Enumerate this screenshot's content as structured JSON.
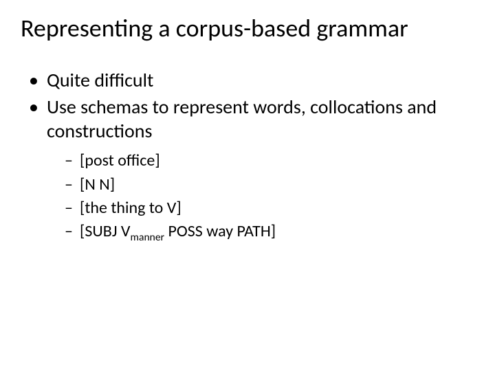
{
  "slide": {
    "title": "Representing a corpus-based grammar",
    "bullets": [
      {
        "text": "Quite difficult"
      },
      {
        "text": "Use schemas to represent words, collocations and constructions"
      }
    ],
    "sub_bullets": [
      {
        "text": "[post office]"
      },
      {
        "text": " [N N]"
      },
      {
        "text": "[the thing to V]"
      },
      {
        "prefix": "[SUBJ V",
        "subscript": "manner",
        "suffix": " POSS way PATH]"
      }
    ],
    "colors": {
      "background": "#ffffff",
      "text": "#000000"
    },
    "typography": {
      "title_fontsize": 36,
      "body_fontsize": 28,
      "sub_fontsize": 24,
      "font_family": "Calibri"
    }
  }
}
